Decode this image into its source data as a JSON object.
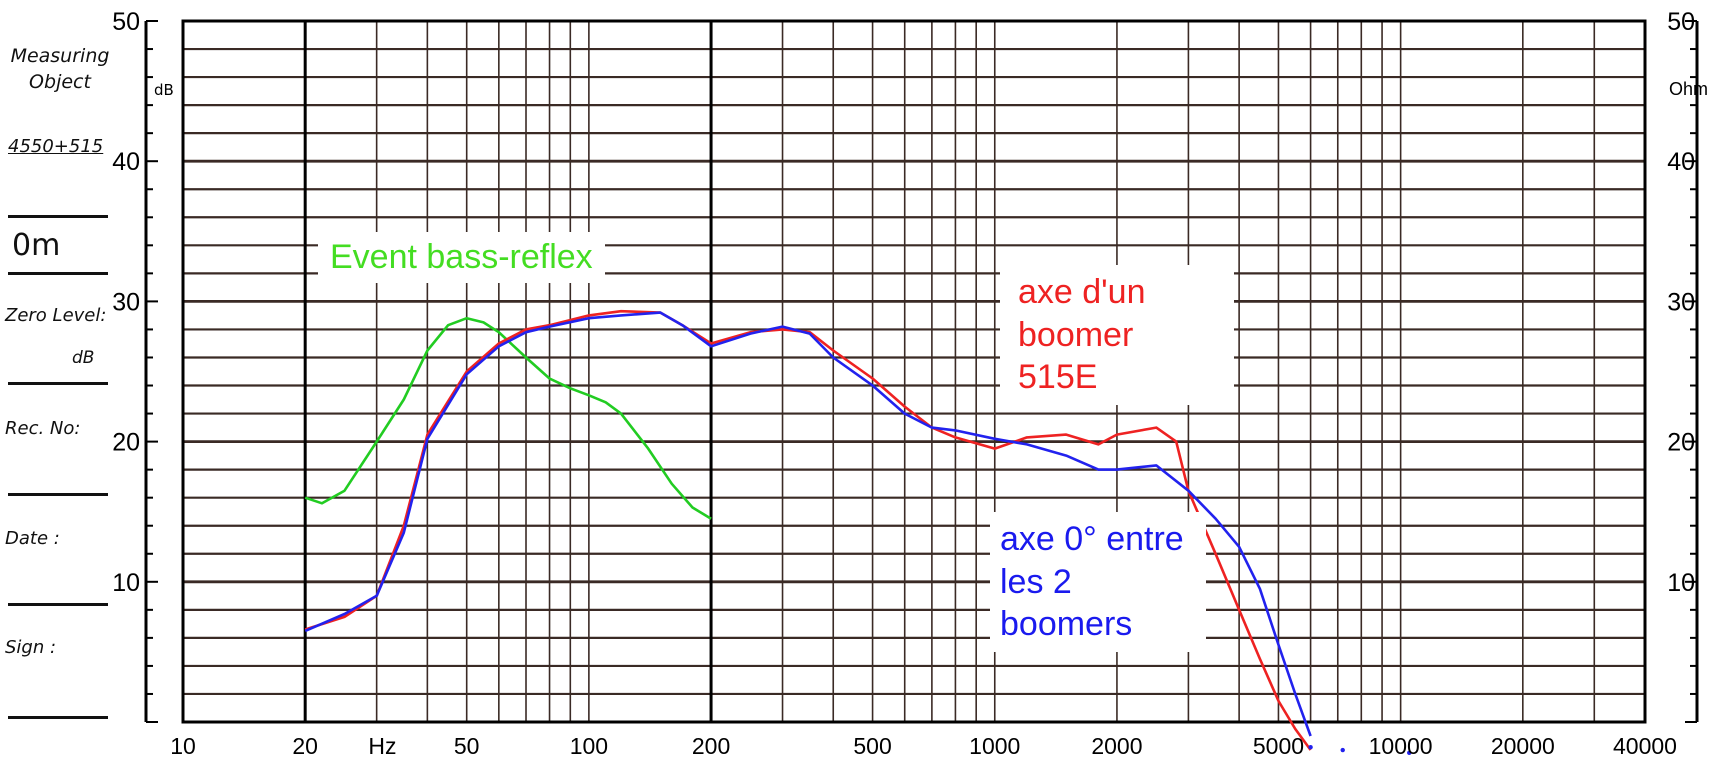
{
  "sidebar": {
    "measuring_object_label": "Measuring Object",
    "measuring_object_value": "4550+515",
    "distance": "0m",
    "zero_level_label": "Zero Level:",
    "zero_level_unit": "dB",
    "rec_no_label": "Rec. No:",
    "date_label": "Date :",
    "sign_label": "Sign :"
  },
  "chart_data": {
    "type": "line",
    "x_scale": "log",
    "xlim": [
      10,
      40000
    ],
    "ylim": [
      0,
      50
    ],
    "x_unit_label": "Hz",
    "y_unit_left": "dB",
    "y_unit_right": "Ohm",
    "x_ticks": [
      10,
      20,
      50,
      100,
      200,
      500,
      1000,
      2000,
      5000,
      10000,
      20000,
      40000
    ],
    "y_ticks": [
      10,
      20,
      30,
      40,
      50
    ],
    "grid": true,
    "series": [
      {
        "name": "Event bass-reflex",
        "color": "#22cc22",
        "points": [
          [
            20,
            16
          ],
          [
            22,
            15.6
          ],
          [
            25,
            16.5
          ],
          [
            30,
            20
          ],
          [
            35,
            23
          ],
          [
            40,
            26.5
          ],
          [
            45,
            28.3
          ],
          [
            50,
            28.8
          ],
          [
            55,
            28.5
          ],
          [
            60,
            27.8
          ],
          [
            70,
            26
          ],
          [
            80,
            24.5
          ],
          [
            90,
            23.8
          ],
          [
            100,
            23.3
          ],
          [
            110,
            22.8
          ],
          [
            120,
            22
          ],
          [
            140,
            19.5
          ],
          [
            160,
            17
          ],
          [
            180,
            15.3
          ],
          [
            200,
            14.5
          ]
        ]
      },
      {
        "name": "axe d'un boomer 515E",
        "color": "#ee2222",
        "points": [
          [
            20,
            6.6
          ],
          [
            25,
            7.5
          ],
          [
            30,
            9
          ],
          [
            35,
            14
          ],
          [
            40,
            20.5
          ],
          [
            50,
            25
          ],
          [
            60,
            27
          ],
          [
            70,
            28
          ],
          [
            80,
            28.3
          ],
          [
            100,
            29
          ],
          [
            120,
            29.3
          ],
          [
            150,
            29.2
          ],
          [
            170,
            28.3
          ],
          [
            200,
            27
          ],
          [
            250,
            27.8
          ],
          [
            300,
            28
          ],
          [
            350,
            27.8
          ],
          [
            400,
            26.5
          ],
          [
            500,
            24.5
          ],
          [
            600,
            22.5
          ],
          [
            700,
            21
          ],
          [
            800,
            20.3
          ],
          [
            1000,
            19.5
          ],
          [
            1200,
            20.3
          ],
          [
            1500,
            20.5
          ],
          [
            1800,
            19.8
          ],
          [
            2000,
            20.5
          ],
          [
            2500,
            21
          ],
          [
            2800,
            20
          ],
          [
            3000,
            16.5
          ],
          [
            3500,
            12
          ],
          [
            4000,
            8
          ],
          [
            4500,
            4.5
          ],
          [
            5000,
            1.5
          ],
          [
            5500,
            -0.5
          ],
          [
            6000,
            -2
          ]
        ]
      },
      {
        "name": "axe 0° entre les 2 boomers",
        "color": "#2222ee",
        "points": [
          [
            20,
            6.5
          ],
          [
            25,
            7.7
          ],
          [
            30,
            9
          ],
          [
            35,
            13.5
          ],
          [
            40,
            20.2
          ],
          [
            50,
            24.8
          ],
          [
            60,
            26.8
          ],
          [
            70,
            27.8
          ],
          [
            80,
            28.2
          ],
          [
            100,
            28.8
          ],
          [
            120,
            29
          ],
          [
            150,
            29.2
          ],
          [
            170,
            28.3
          ],
          [
            200,
            26.8
          ],
          [
            250,
            27.7
          ],
          [
            300,
            28.2
          ],
          [
            350,
            27.7
          ],
          [
            400,
            26
          ],
          [
            500,
            24
          ],
          [
            600,
            22
          ],
          [
            700,
            21
          ],
          [
            800,
            20.8
          ],
          [
            1000,
            20.2
          ],
          [
            1200,
            19.8
          ],
          [
            1500,
            19
          ],
          [
            1800,
            18
          ],
          [
            2000,
            18
          ],
          [
            2500,
            18.3
          ],
          [
            3000,
            16.5
          ],
          [
            3500,
            14.5
          ],
          [
            4000,
            12.5
          ],
          [
            4500,
            9.5
          ],
          [
            5000,
            5.5
          ],
          [
            5500,
            2
          ],
          [
            6000,
            -1
          ]
        ]
      }
    ]
  },
  "annotations": {
    "green": "Event bass-reflex",
    "red_line1": "axe d'un",
    "red_line2": "boomer 515E",
    "blue_line1": "axe 0° entre",
    "blue_line2": "les 2 boomers"
  }
}
